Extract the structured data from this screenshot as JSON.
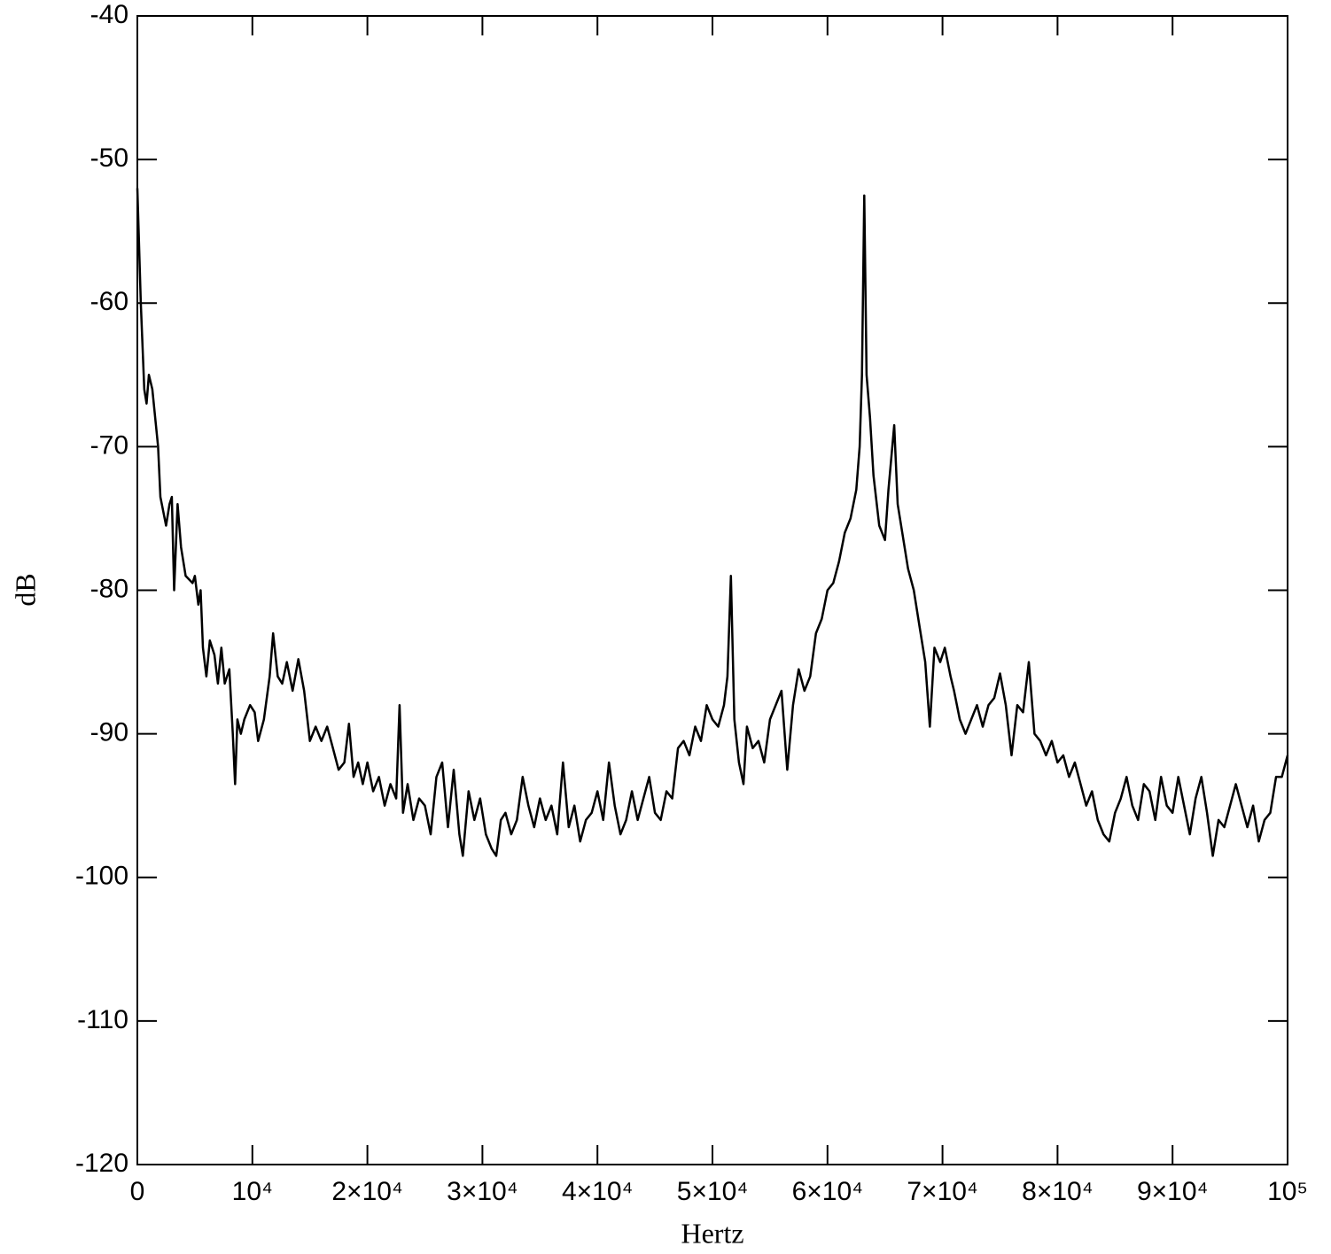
{
  "chart_data": {
    "type": "line",
    "x_label": "Hertz",
    "y_label": "dB",
    "xlim": [
      0,
      100000
    ],
    "ylim": [
      -120,
      -40
    ],
    "xticks": [
      0,
      {
        "value": 10000,
        "label": "10⁴"
      },
      {
        "value": 20000,
        "label": "2×10⁴"
      },
      {
        "value": 30000,
        "label": "3×10⁴"
      },
      {
        "value": 40000,
        "label": "4×10⁴"
      },
      {
        "value": 50000,
        "label": "5×10⁴"
      },
      {
        "value": 60000,
        "label": "6×10⁴"
      },
      {
        "value": 70000,
        "label": "7×10⁴"
      },
      {
        "value": 80000,
        "label": "8×10⁴"
      },
      {
        "value": 90000,
        "label": "9×10⁴"
      },
      {
        "value": 100000,
        "label": "10⁵"
      }
    ],
    "yticks": [
      -120,
      -110,
      -100,
      -90,
      -80,
      -70,
      -60,
      -50,
      -40
    ],
    "grid": false,
    "series": [
      {
        "color": "#000000",
        "x": [
          0,
          300,
          600,
          800,
          1000,
          1300,
          1800,
          2000,
          2500,
          2800,
          3000,
          3200,
          3500,
          3800,
          4200,
          4800,
          5000,
          5300,
          5500,
          5700,
          6000,
          6300,
          6700,
          7000,
          7300,
          7600,
          8000,
          8300,
          8500,
          8700,
          9000,
          9300,
          9800,
          10200,
          10500,
          11000,
          11500,
          11800,
          12200,
          12600,
          13000,
          13500,
          14000,
          14500,
          15000,
          15500,
          16000,
          16500,
          17000,
          17500,
          18000,
          18400,
          18800,
          19200,
          19600,
          20000,
          20500,
          21000,
          21500,
          22000,
          22500,
          22800,
          23100,
          23500,
          24000,
          24500,
          25000,
          25500,
          26000,
          26500,
          27000,
          27500,
          28000,
          28300,
          28800,
          29300,
          29800,
          30300,
          30800,
          31200,
          31600,
          32000,
          32500,
          33000,
          33500,
          34000,
          34500,
          35000,
          35500,
          36000,
          36500,
          37000,
          37500,
          38000,
          38500,
          39000,
          39500,
          40000,
          40500,
          41000,
          41500,
          42000,
          42500,
          43000,
          43500,
          44000,
          44500,
          45000,
          45500,
          46000,
          46500,
          47000,
          47500,
          48000,
          48500,
          49000,
          49500,
          50000,
          50500,
          51000,
          51300,
          51600,
          51900,
          52300,
          52700,
          53000,
          53500,
          54000,
          54500,
          55000,
          55500,
          56000,
          56500,
          57000,
          57500,
          58000,
          58500,
          59000,
          59500,
          60000,
          60500,
          61000,
          61500,
          62000,
          62500,
          62800,
          63000,
          63200,
          63400,
          63700,
          64000,
          64500,
          65000,
          65300,
          65800,
          66100,
          66500,
          67000,
          67500,
          68000,
          68500,
          68900,
          69300,
          69800,
          70200,
          70700,
          71000,
          71500,
          72000,
          72500,
          73000,
          73500,
          74000,
          74500,
          75000,
          75500,
          76000,
          76500,
          77000,
          77500,
          78000,
          78500,
          79000,
          79500,
          80000,
          80500,
          81000,
          81500,
          82000,
          82500,
          83000,
          83500,
          84000,
          84500,
          85000,
          85500,
          86000,
          86500,
          87000,
          87500,
          88000,
          88500,
          89000,
          89500,
          90000,
          90500,
          91000,
          91500,
          92000,
          92500,
          93000,
          93500,
          94000,
          94500,
          95000,
          95500,
          96000,
          96500,
          97000,
          97500,
          98000,
          98500,
          99000,
          99500,
          100000
        ],
        "values": [
          -52,
          -60,
          -66,
          -67,
          -65,
          -66,
          -70,
          -73.5,
          -75.5,
          -74,
          -73.5,
          -80,
          -74,
          -77,
          -79,
          -79.5,
          -79,
          -81,
          -80,
          -84,
          -86,
          -83.5,
          -84.5,
          -86.5,
          -84,
          -86.5,
          -85.5,
          -90,
          -93.5,
          -89,
          -90,
          -89,
          -88,
          -88.5,
          -90.5,
          -89,
          -86,
          -83,
          -86,
          -86.5,
          -85,
          -87,
          -84.8,
          -87,
          -90.5,
          -89.5,
          -90.5,
          -89.5,
          -91,
          -92.5,
          -92,
          -89.3,
          -93,
          -92,
          -93.5,
          -92,
          -94,
          -93,
          -95,
          -93.5,
          -94.5,
          -88,
          -95.5,
          -93.5,
          -96,
          -94.5,
          -95,
          -97,
          -93,
          -92,
          -96.5,
          -92.5,
          -97,
          -98.5,
          -94,
          -96,
          -94.5,
          -97,
          -98,
          -98.5,
          -96,
          -95.5,
          -97,
          -96,
          -93,
          -95,
          -96.5,
          -94.5,
          -96,
          -95,
          -97,
          -92,
          -96.5,
          -95,
          -97.5,
          -96,
          -95.5,
          -94,
          -96,
          -92,
          -95,
          -97,
          -96,
          -94,
          -96,
          -94.5,
          -93,
          -95.5,
          -96,
          -94,
          -94.5,
          -91,
          -90.5,
          -91.5,
          -89.5,
          -90.5,
          -88,
          -89,
          -89.5,
          -88,
          -86,
          -79,
          -89,
          -92,
          -93.5,
          -89.5,
          -91,
          -90.5,
          -92,
          -89,
          -88,
          -87,
          -92.5,
          -88,
          -85.5,
          -87,
          -86,
          -83,
          -82,
          -80,
          -79.5,
          -78,
          -76,
          -75,
          -73,
          -70,
          -65,
          -52.5,
          -65,
          -68,
          -72,
          -75.5,
          -76.5,
          -73,
          -68.5,
          -74,
          -76,
          -78.5,
          -80,
          -82.5,
          -85,
          -89.5,
          -84,
          -85,
          -84,
          -86,
          -87,
          -89,
          -90,
          -89,
          -88,
          -89.5,
          -88,
          -87.5,
          -85.8,
          -88,
          -91.5,
          -88,
          -88.5,
          -85,
          -90,
          -90.5,
          -91.5,
          -90.5,
          -92,
          -91.5,
          -93,
          -92,
          -93.5,
          -95,
          -94,
          -96,
          -97,
          -97.5,
          -95.5,
          -94.5,
          -93,
          -95,
          -96,
          -93.5,
          -94,
          -96,
          -93,
          -95,
          -95.5,
          -93,
          -95,
          -97,
          -94.5,
          -93,
          -95.5,
          -98.5,
          -96,
          -96.5,
          -95,
          -93.5,
          -95,
          -96.5,
          -95,
          -97.5,
          -96,
          -95.5,
          -93,
          -93,
          -91.5
        ]
      }
    ]
  }
}
